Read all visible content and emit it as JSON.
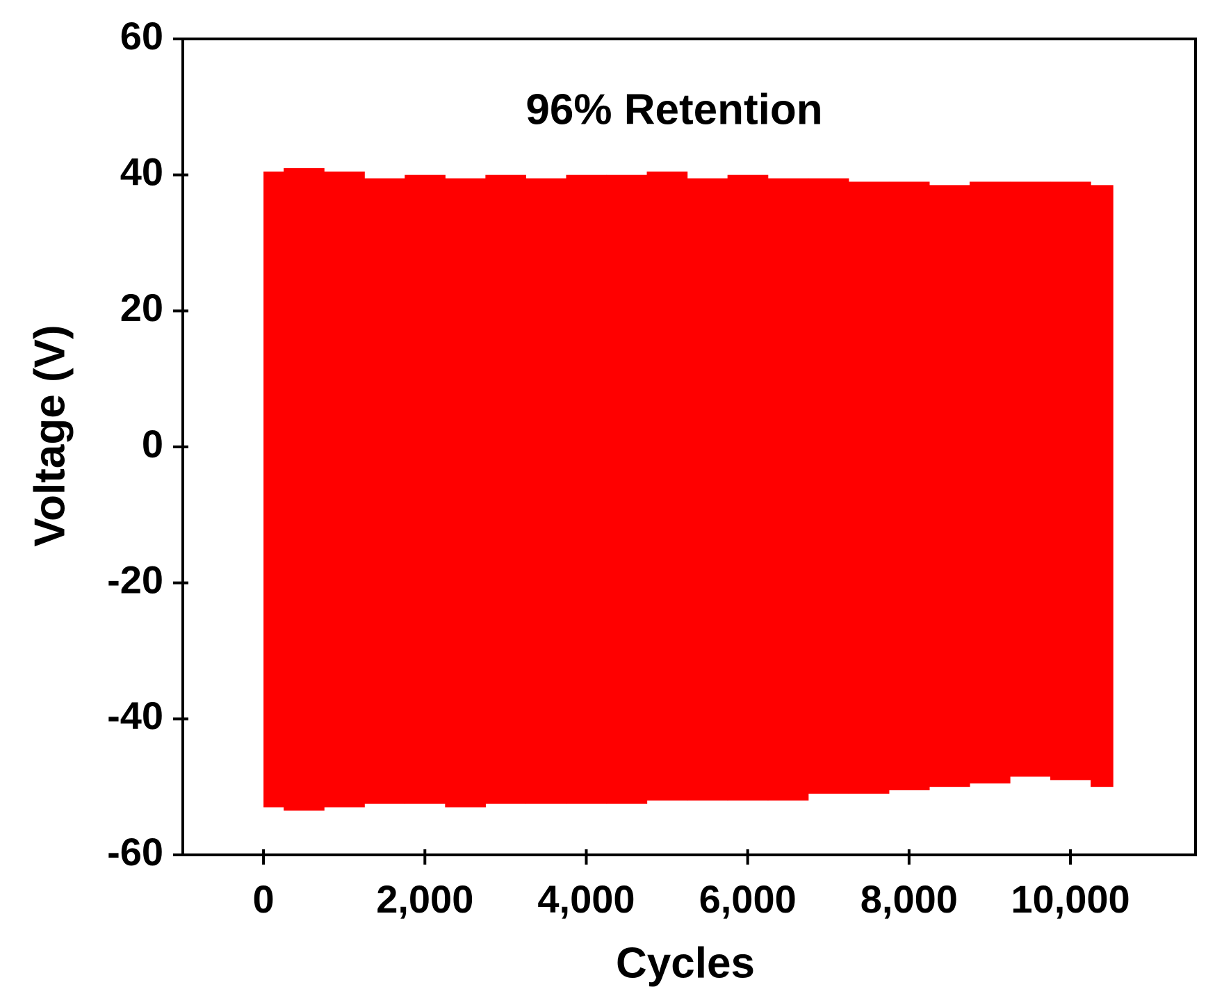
{
  "chart_data": {
    "type": "band",
    "annotation": "96% Retention",
    "x_label": "Cycles",
    "y_label": "Voltage (V)",
    "color": "#ff0000",
    "x": [
      0,
      500,
      1000,
      1500,
      2000,
      2500,
      3000,
      3500,
      4000,
      4500,
      5000,
      5500,
      6000,
      6500,
      7000,
      7500,
      8000,
      8500,
      9000,
      9500,
      10000,
      10500
    ],
    "high": [
      40.5,
      41,
      40.5,
      39.5,
      40,
      39.5,
      40,
      39.5,
      40,
      40,
      40.5,
      39.5,
      40,
      39.5,
      39.5,
      39,
      39,
      38.5,
      39,
      39,
      39,
      38.5
    ],
    "low": [
      -53,
      -53.5,
      -53,
      -52.5,
      -52.5,
      -53,
      -52.5,
      -52.5,
      -52.5,
      -52.5,
      -52,
      -52,
      -52,
      -52,
      -51,
      -51,
      -50.5,
      -50,
      -49.5,
      -48.5,
      -49,
      -50
    ],
    "xlim": [
      -1000,
      11550
    ],
    "ylim": [
      -60,
      60
    ],
    "xticks": [
      {
        "value": 0,
        "label": "0"
      },
      {
        "value": 2000,
        "label": "2,000"
      },
      {
        "value": 4000,
        "label": "4,000"
      },
      {
        "value": 6000,
        "label": "6,000"
      },
      {
        "value": 8000,
        "label": "8,000"
      },
      {
        "value": 10000,
        "label": "10,000"
      }
    ],
    "yticks": [
      -60,
      -40,
      -20,
      0,
      20,
      40,
      60
    ]
  }
}
